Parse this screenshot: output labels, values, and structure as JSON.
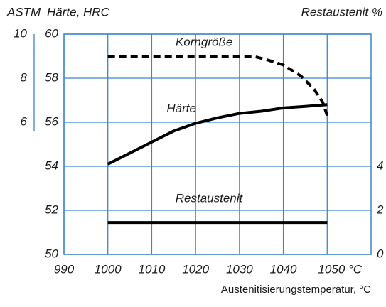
{
  "chart_data": {
    "type": "line",
    "y3_axis_label": "ASTM",
    "y_axis_label": "Härte, HRC",
    "y2_axis_label": "Restaustenit %",
    "x_axis_label": "Austenitisierungstemperatur, °C",
    "xlim": [
      990,
      1060
    ],
    "xticks": [
      990,
      1000,
      1010,
      1020,
      1030,
      1040,
      {
        "value": 1050,
        "label": "1050 °C"
      }
    ],
    "ylim": [
      50,
      60
    ],
    "yticks": [
      50,
      52,
      54,
      56,
      58,
      60
    ],
    "y2lim": [
      0,
      10
    ],
    "y2ticks": [
      0,
      2,
      4
    ],
    "y3lim": [
      0,
      10
    ],
    "y3ticks": [
      6,
      8,
      10
    ],
    "grid": true,
    "grid_color": "#3d86c6",
    "series": [
      {
        "name": "Korngröße",
        "color": "#000000",
        "dashed": true,
        "axis": "y3",
        "x": [
          1000,
          1010,
          1020,
          1030,
          1033,
          1036,
          1040,
          1044,
          1047,
          1049,
          1050
        ],
        "values": [
          9,
          9,
          9,
          9,
          9,
          8.85,
          8.6,
          8.1,
          7.5,
          6.9,
          6.3
        ]
      },
      {
        "name": "Härte",
        "color": "#000000",
        "dashed": false,
        "axis": "y",
        "x": [
          1000,
          1005,
          1010,
          1015,
          1020,
          1025,
          1030,
          1035,
          1040,
          1045,
          1050
        ],
        "values": [
          54.1,
          54.6,
          55.1,
          55.6,
          55.95,
          56.2,
          56.4,
          56.5,
          56.65,
          56.72,
          56.8
        ]
      },
      {
        "name": "Restaustenit",
        "color": "#000000",
        "dashed": false,
        "axis": "y2",
        "x": [
          1000,
          1050
        ],
        "values": [
          1.45,
          1.45
        ]
      }
    ]
  }
}
